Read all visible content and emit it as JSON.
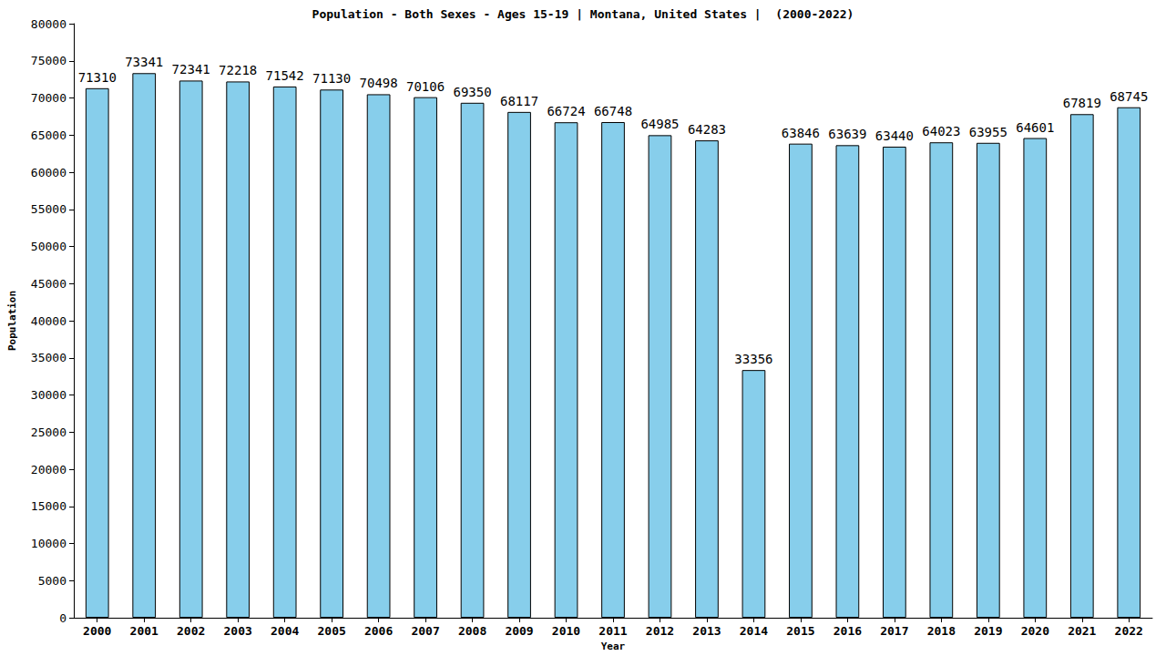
{
  "chart_data": {
    "type": "bar",
    "title": "Population - Both Sexes - Ages 15-19 | Montana, United States |  (2000-2022)",
    "x_label": "Year",
    "y_label": "Population",
    "categories": [
      "2000",
      "2001",
      "2002",
      "2003",
      "2004",
      "2005",
      "2006",
      "2007",
      "2008",
      "2009",
      "2010",
      "2011",
      "2012",
      "2013",
      "2014",
      "2015",
      "2016",
      "2017",
      "2018",
      "2019",
      "2020",
      "2021",
      "2022"
    ],
    "values": [
      71310,
      73341,
      72341,
      72218,
      71542,
      71130,
      70498,
      70106,
      69350,
      68117,
      66724,
      66748,
      64985,
      64283,
      33356,
      63846,
      63639,
      63440,
      64023,
      63955,
      64601,
      67819,
      68745
    ],
    "color": "#87ceeb",
    "ylim": [
      0,
      80000
    ],
    "yticks": [
      0,
      5000,
      10000,
      15000,
      20000,
      25000,
      30000,
      35000,
      40000,
      45000,
      50000,
      55000,
      60000,
      65000,
      70000,
      75000,
      80000
    ],
    "grid": false,
    "data_labels": true
  }
}
